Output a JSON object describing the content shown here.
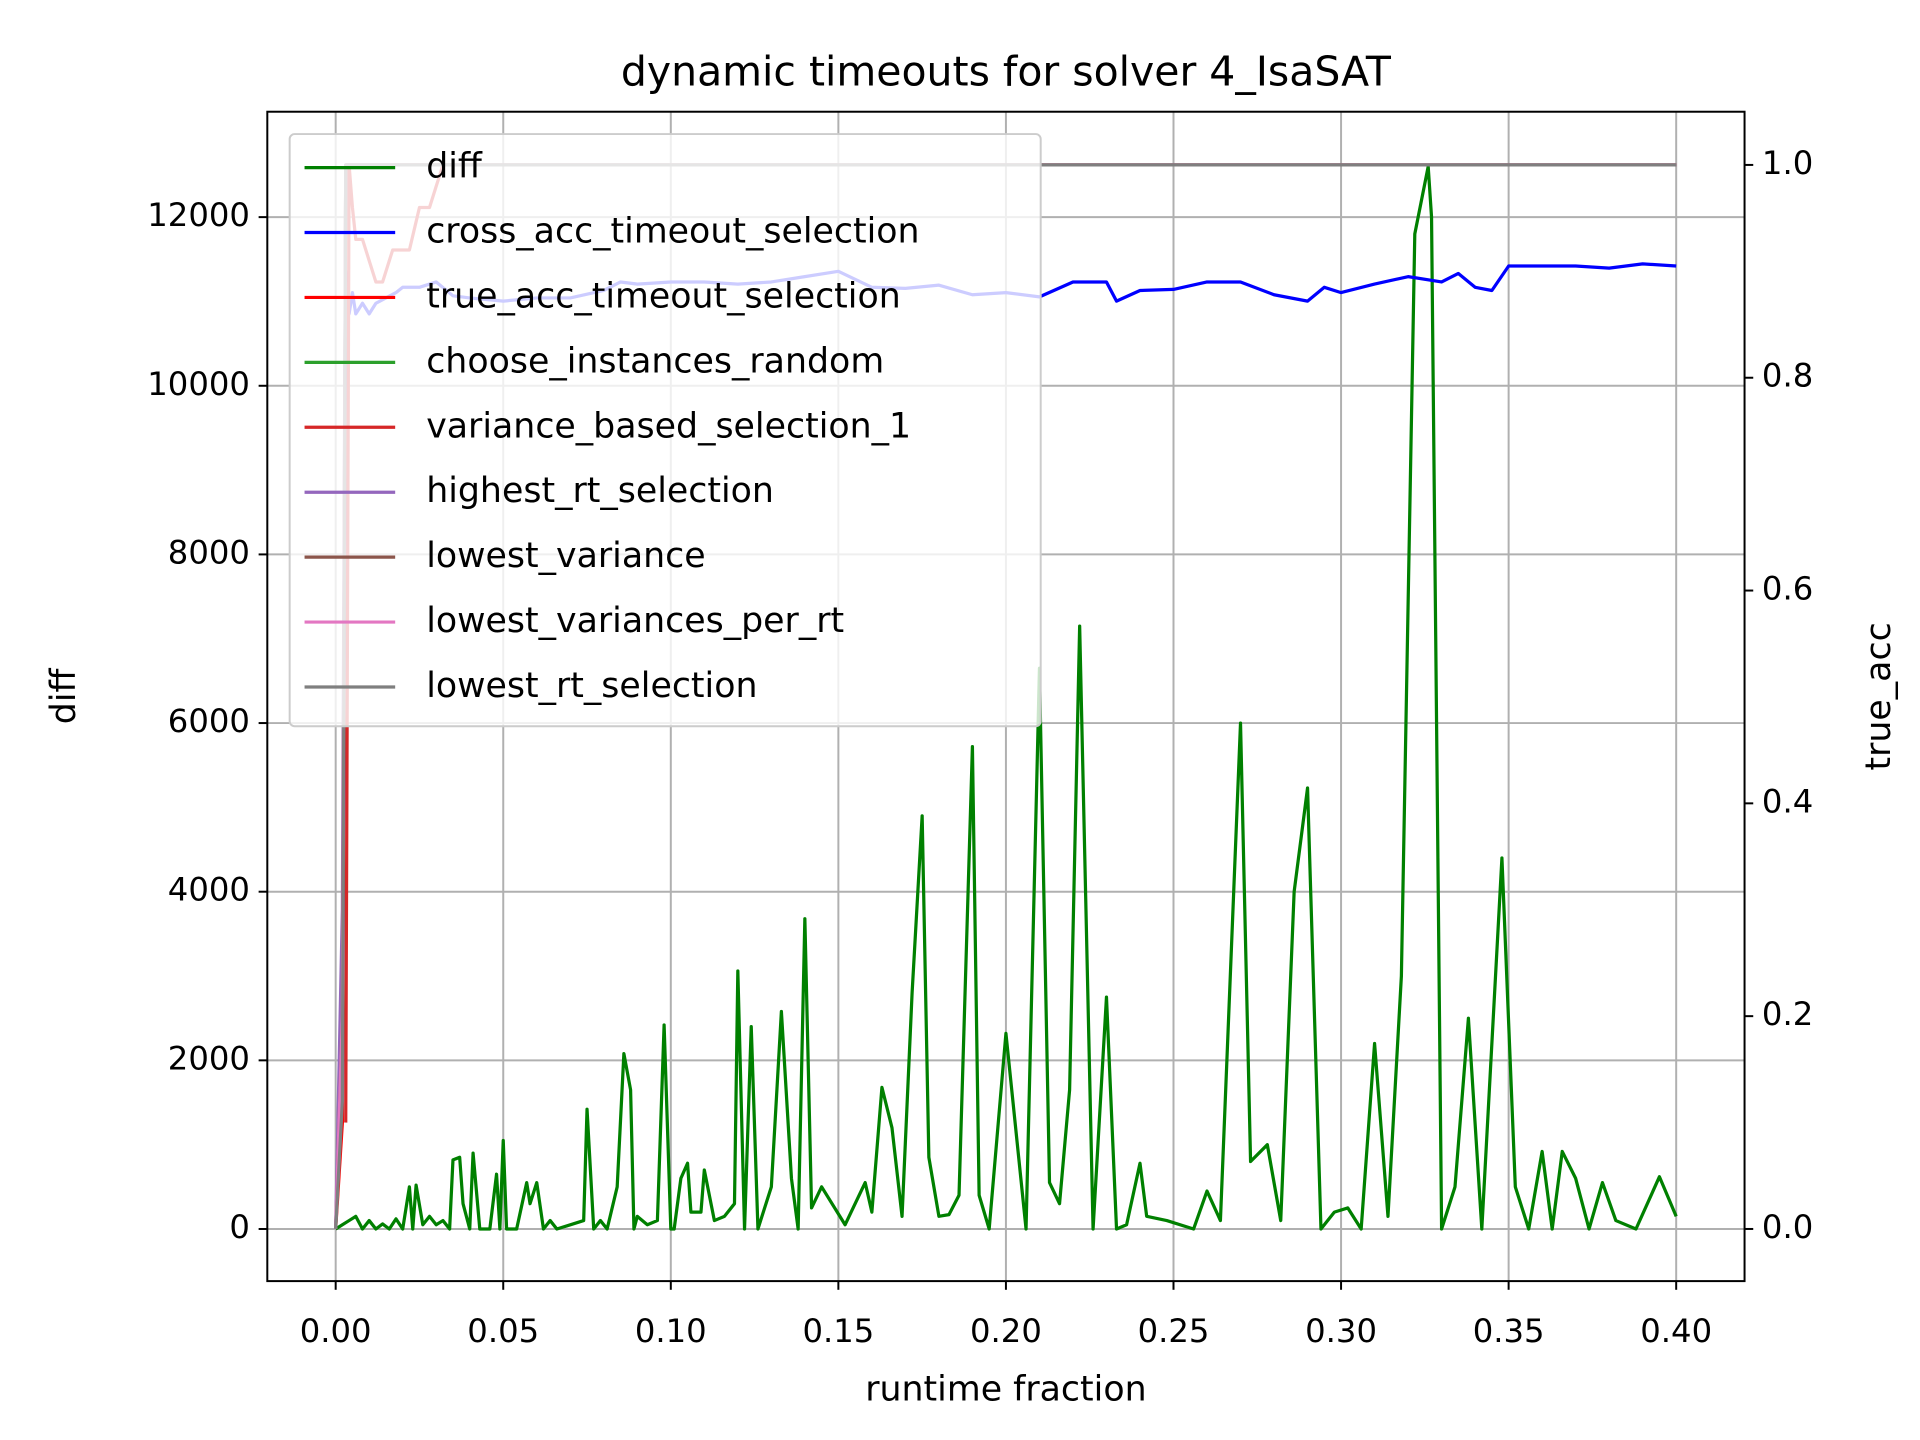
{
  "chart_data": {
    "type": "line",
    "title": "dynamic timeouts for solver 4_IsaSAT",
    "x_label": "runtime fraction",
    "y_label": "diff",
    "y2_label": "true_acc",
    "y_label_color": "green",
    "y2_label_color": "red",
    "xlim": [
      -0.0204,
      0.4204
    ],
    "xticks": [
      {
        "value": 0,
        "label": "0.00"
      },
      {
        "value": 0.05,
        "label": "0.05"
      },
      {
        "value": 0.1,
        "label": "0.10"
      },
      {
        "value": 0.15,
        "label": "0.15"
      },
      {
        "value": 0.2,
        "label": "0.20"
      },
      {
        "value": 0.25,
        "label": "0.25"
      },
      {
        "value": 0.3,
        "label": "0.30"
      },
      {
        "value": 0.35,
        "label": "0.35"
      },
      {
        "value": 0.4,
        "label": "0.40"
      }
    ],
    "ylim": [
      -618,
      13250
    ],
    "yticks": [
      0,
      2000,
      4000,
      6000,
      8000,
      10000,
      12000
    ],
    "y2lim": [
      -0.049,
      1.05
    ],
    "y2ticks": [
      {
        "value": 0,
        "label": "0.0"
      },
      {
        "value": 0.2,
        "label": "0.2"
      },
      {
        "value": 0.4,
        "label": "0.4"
      },
      {
        "value": 0.6,
        "label": "0.6"
      },
      {
        "value": 0.8,
        "label": "0.8"
      },
      {
        "value": 1,
        "label": "1.0"
      }
    ],
    "grid": true,
    "legend": "upper left",
    "series": [
      {
        "name": "diff",
        "color": "#008000",
        "x": [
          0,
          0.002,
          0.004,
          0.006,
          0.008,
          0.01,
          0.012,
          0.014,
          0.016,
          0.018,
          0.02,
          0.022,
          0.023,
          0.024,
          0.026,
          0.028,
          0.03,
          0.032,
          0.034,
          0.035,
          0.037,
          0.038,
          0.04,
          0.041,
          0.043,
          0.046,
          0.048,
          0.049,
          0.05,
          0.051,
          0.054,
          0.057,
          0.058,
          0.06,
          0.062,
          0.064,
          0.066,
          0.07,
          0.074,
          0.075,
          0.077,
          0.079,
          0.081,
          0.084,
          0.086,
          0.088,
          0.089,
          0.09,
          0.093,
          0.096,
          0.098,
          0.1,
          0.101,
          0.103,
          0.105,
          0.106,
          0.109,
          0.11,
          0.113,
          0.116,
          0.119,
          0.12,
          0.122,
          0.124,
          0.126,
          0.13,
          0.133,
          0.136,
          0.138,
          0.14,
          0.142,
          0.145,
          0.152,
          0.158,
          0.16,
          0.163,
          0.166,
          0.169,
          0.172,
          0.175,
          0.177,
          0.18,
          0.183,
          0.186,
          0.19,
          0.192,
          0.195,
          0.2,
          0.206,
          0.21,
          0.213,
          0.216,
          0.219,
          0.222,
          0.226,
          0.23,
          0.233,
          0.236,
          0.24,
          0.242,
          0.248,
          0.256,
          0.26,
          0.264,
          0.27,
          0.273,
          0.278,
          0.282,
          0.286,
          0.29,
          0.294,
          0.298,
          0.302,
          0.306,
          0.31,
          0.314,
          0.318,
          0.322,
          0.326,
          0.327,
          0.33,
          0.334,
          0.338,
          0.342,
          0.348,
          0.352,
          0.356,
          0.36,
          0.363,
          0.366,
          0.37,
          0.374,
          0.378,
          0.382,
          0.388,
          0.395,
          0.4
        ],
        "values": [
          0,
          50,
          100,
          150,
          0,
          100,
          0,
          60,
          0,
          120,
          0,
          500,
          0,
          520,
          50,
          150,
          50,
          100,
          0,
          820,
          850,
          300,
          0,
          900,
          0,
          0,
          650,
          0,
          1050,
          0,
          0,
          550,
          300,
          550,
          0,
          100,
          0,
          50,
          100,
          1420,
          0,
          100,
          0,
          500,
          2080,
          1650,
          0,
          150,
          50,
          100,
          2420,
          0,
          0,
          600,
          780,
          200,
          200,
          700,
          100,
          150,
          300,
          3060,
          0,
          2400,
          0,
          500,
          2580,
          600,
          0,
          3680,
          250,
          500,
          50,
          550,
          200,
          1680,
          1200,
          150,
          2800,
          4900,
          850,
          150,
          170,
          400,
          5720,
          400,
          0,
          2320,
          0,
          6650,
          550,
          300,
          1650,
          7150,
          0,
          2750,
          0,
          50,
          780,
          150,
          100,
          0,
          450,
          100,
          6000,
          800,
          1000,
          100,
          4000,
          5230,
          0,
          200,
          250,
          0,
          2200,
          150,
          3000,
          11800,
          12600,
          12000,
          0,
          500,
          2500,
          0,
          4400,
          500,
          0,
          920,
          0,
          920,
          600,
          0,
          550,
          100,
          0,
          620,
          150
        ]
      },
      {
        "name": "cross_acc_timeout_selection",
        "color": "#0000ff",
        "axis": "y2",
        "x": [
          0.002,
          0.003,
          0.004,
          0.005,
          0.006,
          0.008,
          0.01,
          0.012,
          0.015,
          0.018,
          0.02,
          0.025,
          0.03,
          0.035,
          0.04,
          0.05,
          0.06,
          0.07,
          0.08,
          0.085,
          0.09,
          0.1,
          0.11,
          0.12,
          0.13,
          0.14,
          0.15,
          0.16,
          0.17,
          0.18,
          0.19,
          0.2,
          0.21,
          0.22,
          0.23,
          0.233,
          0.24,
          0.25,
          0.26,
          0.27,
          0.28,
          0.29,
          0.295,
          0.3,
          0.31,
          0.32,
          0.33,
          0.335,
          0.34,
          0.345,
          0.35,
          0.36,
          0.37,
          0.38,
          0.39,
          0.4
        ],
        "values": [
          0.1,
          0.9,
          0.86,
          0.88,
          0.86,
          0.87,
          0.86,
          0.87,
          0.875,
          0.88,
          0.885,
          0.885,
          0.89,
          0.877,
          0.875,
          0.872,
          0.875,
          0.875,
          0.882,
          0.89,
          0.888,
          0.89,
          0.89,
          0.888,
          0.89,
          0.895,
          0.9,
          0.885,
          0.884,
          0.887,
          0.878,
          0.88,
          0.876,
          0.89,
          0.89,
          0.872,
          0.882,
          0.883,
          0.89,
          0.89,
          0.878,
          0.872,
          0.885,
          0.88,
          0.888,
          0.895,
          0.89,
          0.898,
          0.885,
          0.882,
          0.905,
          0.905,
          0.905,
          0.903,
          0.907,
          0.905
        ]
      },
      {
        "name": "true_acc_timeout_selection",
        "color": "#ff0000",
        "axis": "y2",
        "x": [
          0,
          0.002,
          0.003,
          0.4
        ],
        "values": [
          0,
          0.1,
          1,
          1
        ]
      },
      {
        "name": "choose_instances_random",
        "color": "#2ca02c",
        "axis": "y2",
        "x": [
          0,
          0.002,
          0.003,
          0.4
        ],
        "values": [
          0,
          0.15,
          1,
          1
        ]
      },
      {
        "name": "variance_based_selection_1",
        "color": "#d62728",
        "axis": "y2",
        "x": [
          0.003,
          0.004,
          0.005,
          0.006,
          0.008,
          0.012,
          0.014,
          0.017,
          0.022,
          0.025,
          0.028,
          0.032,
          0.033
        ],
        "values": [
          0.1,
          1,
          0.96,
          0.93,
          0.93,
          0.89,
          0.89,
          0.92,
          0.92,
          0.96,
          0.96,
          1,
          1
        ]
      },
      {
        "name": "highest_rt_selection",
        "color": "#9467bd",
        "axis": "y2",
        "x": [
          0,
          0.002,
          0.003,
          0.4
        ],
        "values": [
          0,
          0.3,
          1,
          1
        ]
      },
      {
        "name": "lowest_variance",
        "color": "#8c564b",
        "axis": "y2",
        "x": [
          0,
          0.002,
          0.003,
          0.4
        ],
        "values": [
          0,
          0.2,
          1,
          1
        ]
      },
      {
        "name": "lowest_variances_per_rt",
        "color": "#e377c2",
        "axis": "y2",
        "x": [
          0,
          0.002,
          0.003,
          0.4
        ],
        "values": [
          0,
          0.2,
          1,
          1
        ]
      },
      {
        "name": "lowest_rt_selection",
        "color": "#7f7f7f",
        "axis": "y2",
        "x": [
          0,
          0.002,
          0.003,
          0.4
        ],
        "values": [
          0,
          0.12,
          1,
          1
        ]
      }
    ]
  }
}
